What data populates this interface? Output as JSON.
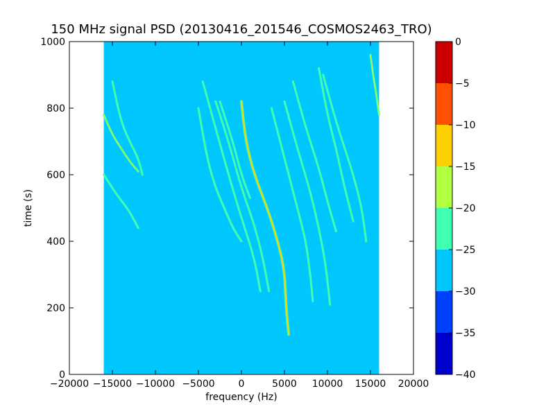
{
  "chart_data": {
    "type": "heatmap",
    "title": "150 MHz signal PSD (20130416_201546_COSMOS2463_TRO)",
    "xlabel": "frequency (Hz)",
    "ylabel": "time (s)",
    "xlim": [
      -20000,
      20000
    ],
    "ylim": [
      0,
      1000
    ],
    "x_ticks": [
      -20000,
      -15000,
      -10000,
      -5000,
      0,
      5000,
      10000,
      15000,
      20000
    ],
    "y_ticks": [
      0,
      200,
      400,
      600,
      800,
      1000
    ],
    "data_extent": {
      "x": [
        -16000,
        16000
      ],
      "y": [
        0,
        1000
      ]
    },
    "background_level": "-30 to -25",
    "colorbar": {
      "levels": [
        -40,
        -35,
        -30,
        -25,
        -20,
        -15,
        -10,
        -5,
        0
      ],
      "colors": [
        "#0000cc",
        "#0040ff",
        "#00c8ff",
        "#40ffb0",
        "#b0ff40",
        "#ffd000",
        "#ff5000",
        "#cc0000"
      ]
    },
    "traces": [
      {
        "level": "-20 to -15",
        "points": [
          [
            -16000,
            780
          ],
          [
            -15000,
            720
          ],
          [
            -14000,
            680
          ],
          [
            -13000,
            640
          ],
          [
            -12000,
            610
          ]
        ]
      },
      {
        "level": "-25 to -20",
        "points": [
          [
            -15000,
            880
          ],
          [
            -14000,
            760
          ],
          [
            -13000,
            700
          ],
          [
            -12000,
            650
          ],
          [
            -11500,
            600
          ]
        ]
      },
      {
        "level": "-25 to -20",
        "points": [
          [
            -16000,
            600
          ],
          [
            -14500,
            540
          ],
          [
            -13000,
            490
          ],
          [
            -12000,
            440
          ]
        ]
      },
      {
        "level": "-25 to -20",
        "points": [
          [
            -5000,
            800
          ],
          [
            -4000,
            650
          ],
          [
            -3000,
            560
          ],
          [
            -2000,
            500
          ],
          [
            -1000,
            440
          ],
          [
            0,
            400
          ]
        ]
      },
      {
        "level": "-25 to -20",
        "points": [
          [
            -4500,
            880
          ],
          [
            -3000,
            740
          ],
          [
            -1500,
            600
          ],
          [
            0,
            470
          ],
          [
            1500,
            350
          ],
          [
            2200,
            250
          ]
        ]
      },
      {
        "level": "-25 to -20",
        "points": [
          [
            -3000,
            820
          ],
          [
            -1500,
            700
          ],
          [
            0,
            560
          ],
          [
            1500,
            450
          ],
          [
            2500,
            350
          ],
          [
            3200,
            250
          ]
        ]
      },
      {
        "level": "-25 to -20",
        "points": [
          [
            -2500,
            820
          ],
          [
            -1000,
            700
          ],
          [
            0,
            600
          ],
          [
            1000,
            530
          ]
        ]
      },
      {
        "level": "-15 to -10",
        "points": [
          [
            0,
            820
          ],
          [
            500,
            700
          ],
          [
            1500,
            600
          ],
          [
            3000,
            500
          ],
          [
            4000,
            420
          ],
          [
            5000,
            320
          ],
          [
            5200,
            200
          ],
          [
            5500,
            120
          ]
        ]
      },
      {
        "level": "-25 to -20",
        "points": [
          [
            3500,
            800
          ],
          [
            5000,
            650
          ],
          [
            6500,
            500
          ],
          [
            7500,
            400
          ],
          [
            8000,
            300
          ],
          [
            8300,
            220
          ]
        ]
      },
      {
        "level": "-25 to -20",
        "points": [
          [
            5000,
            820
          ],
          [
            6500,
            680
          ],
          [
            8000,
            550
          ],
          [
            9000,
            440
          ],
          [
            9800,
            330
          ],
          [
            10300,
            210
          ]
        ]
      },
      {
        "level": "-25 to -20",
        "points": [
          [
            6000,
            880
          ],
          [
            7500,
            740
          ],
          [
            9000,
            620
          ],
          [
            10000,
            520
          ],
          [
            11000,
            430
          ]
        ]
      },
      {
        "level": "-25 to -20",
        "points": [
          [
            9500,
            900
          ],
          [
            11000,
            760
          ],
          [
            12000,
            680
          ],
          [
            13000,
            600
          ],
          [
            14000,
            500
          ],
          [
            14500,
            400
          ]
        ]
      },
      {
        "level": "-25 to -20",
        "points": [
          [
            9000,
            920
          ],
          [
            10000,
            780
          ],
          [
            11000,
            680
          ],
          [
            12000,
            560
          ],
          [
            13000,
            460
          ]
        ]
      },
      {
        "level": "-20 to -15",
        "points": [
          [
            15000,
            960
          ],
          [
            15300,
            900
          ],
          [
            15700,
            840
          ],
          [
            16000,
            780
          ]
        ]
      }
    ]
  }
}
